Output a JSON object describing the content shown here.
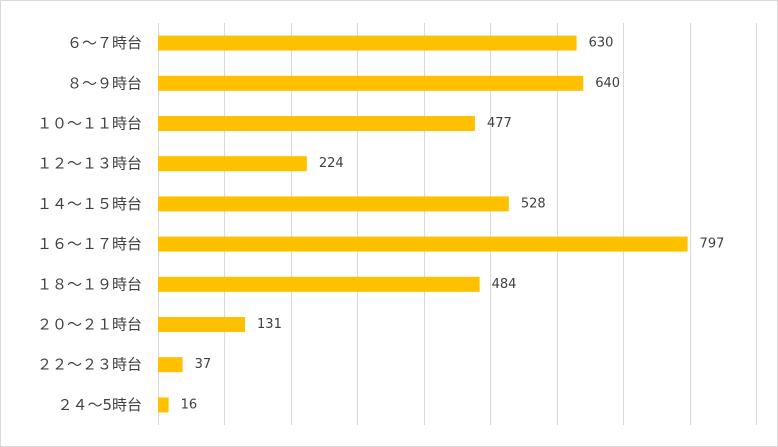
{
  "chart_data": {
    "type": "bar",
    "orientation": "horizontal",
    "categories": [
      "６～７時台",
      "８～９時台",
      "１０～１１時台",
      "１２～１３時台",
      "１４～１５時台",
      "１６～１７時台",
      "１８～１９時台",
      "２０～２１時台",
      "２２～２３時台",
      "２４～5時台"
    ],
    "values": [
      630,
      640,
      477,
      224,
      528,
      797,
      484,
      131,
      37,
      16
    ],
    "title": "",
    "xlabel": "",
    "ylabel": "",
    "xlim": [
      0,
      900
    ],
    "grid": true,
    "legend": "none",
    "bar_color": "#FFC000"
  }
}
